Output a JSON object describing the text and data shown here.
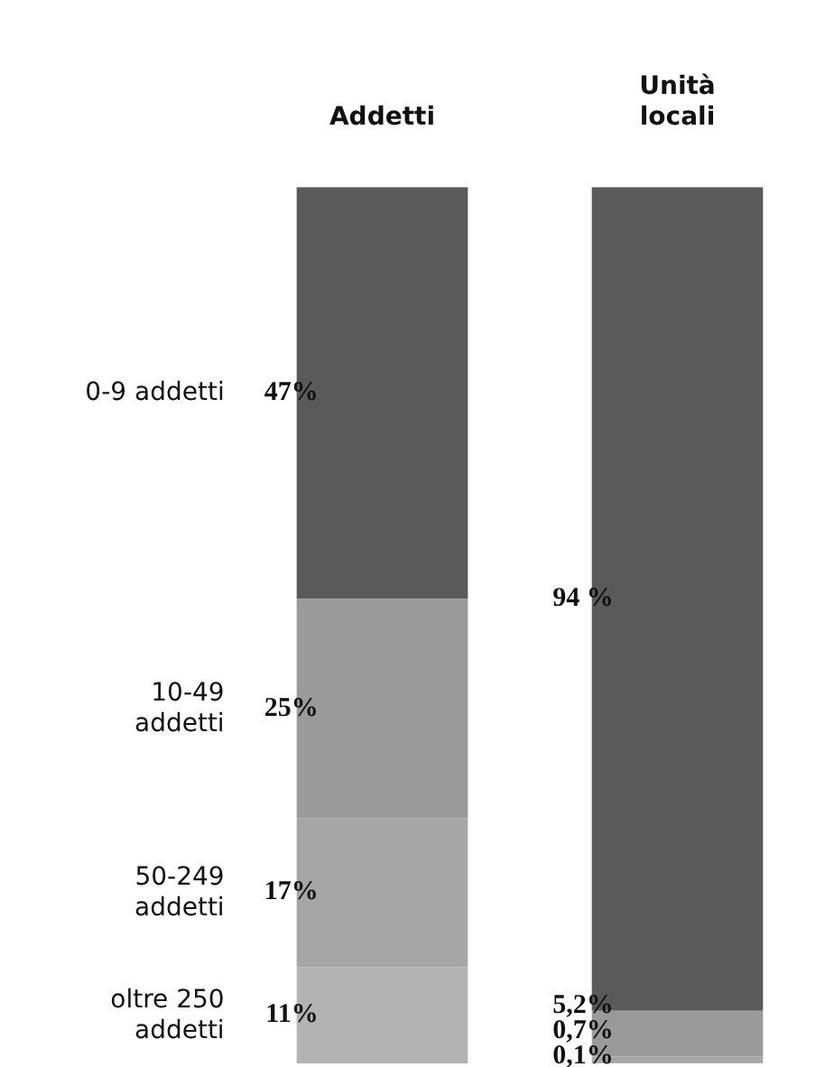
{
  "chart_data": {
    "type": "bar",
    "stacked": true,
    "categories": [
      "Addetti",
      "Unità locali"
    ],
    "tick_labels": "x",
    "legend": false,
    "grid": false,
    "series": [
      {
        "name": "oltre 250 addetti",
        "color": "#b3b3b3",
        "values": [
          11,
          0.1
        ],
        "value_labels": [
          "11%",
          "0,1%"
        ]
      },
      {
        "name": "50-249 addetti",
        "color": "#a6a6a6",
        "values": [
          17,
          0.7
        ],
        "value_labels": [
          "17%",
          "0,7%"
        ]
      },
      {
        "name": "10-49 addetti",
        "color": "#9a9a9a",
        "values": [
          25,
          5.2
        ],
        "value_labels": [
          "25%",
          "5,2%"
        ]
      },
      {
        "name": "0-9 addetti",
        "color": "#5a5a5a",
        "values": [
          47,
          94
        ],
        "value_labels": [
          "47%",
          "94 %"
        ]
      }
    ]
  }
}
